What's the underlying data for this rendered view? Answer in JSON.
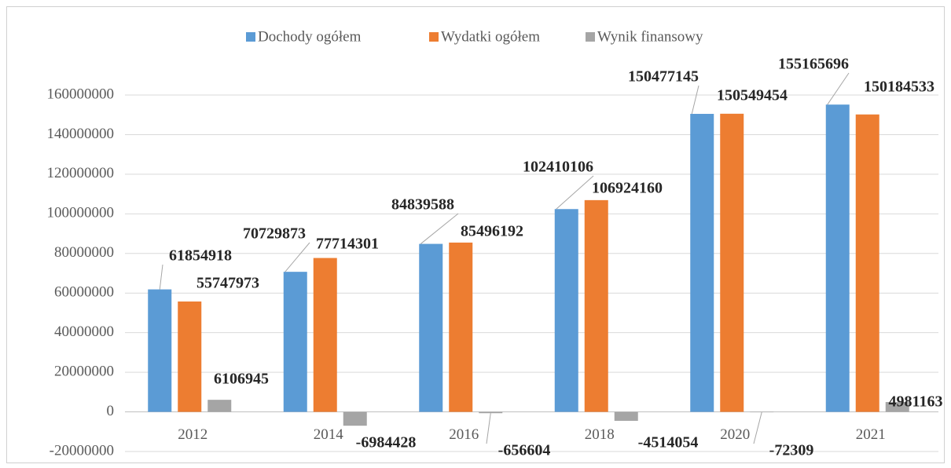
{
  "chart_data": {
    "type": "bar",
    "categories": [
      "2012",
      "2014",
      "2016",
      "2018",
      "2020",
      "2021"
    ],
    "series": [
      {
        "name": "Dochody ogółem",
        "color": "#5b9bd5",
        "values": [
          61854918,
          70729873,
          84839588,
          102410106,
          150477145,
          155165696
        ]
      },
      {
        "name": "Wydatki ogółem",
        "color": "#ed7d31",
        "values": [
          55747973,
          77714301,
          85496192,
          106924160,
          150549454,
          150184533
        ]
      },
      {
        "name": "Wynik finansowy",
        "color": "#a5a5a5",
        "values": [
          6106945,
          -6984428,
          -656604,
          -4514054,
          -72309,
          4981163
        ]
      }
    ],
    "ylim": [
      -20000000,
      160000000
    ],
    "yticks": [
      -20000000,
      0,
      20000000,
      40000000,
      60000000,
      80000000,
      100000000,
      120000000,
      140000000,
      160000000
    ],
    "grid": true,
    "legend": "top"
  }
}
